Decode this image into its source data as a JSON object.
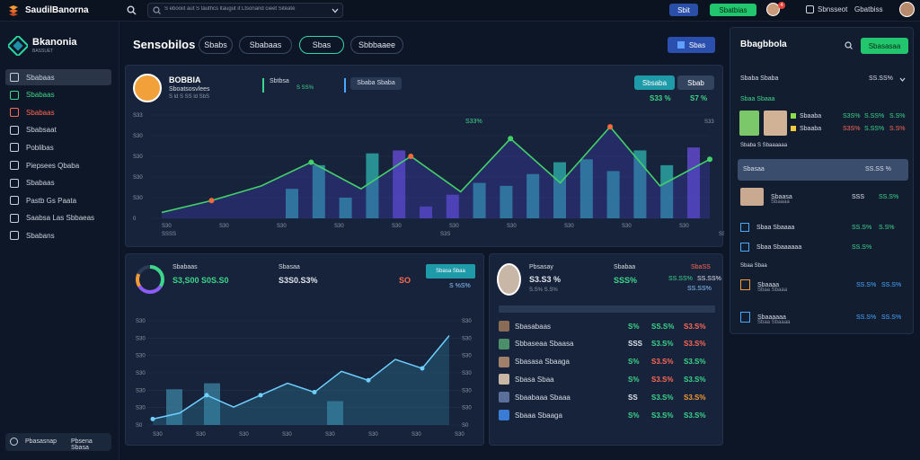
{
  "app": {
    "title": "SaudilBanorna"
  },
  "top": {
    "search_placeholder": "S ebooiit aut S tauthcs ltaugut it Ltsonand cieet Siteate",
    "btn_one": "Sbit",
    "btn_two": "Sbatbias",
    "nav_a": "Sbnsseot",
    "nav_b": "Gbatbiss",
    "notification_count": "4"
  },
  "sidebar": {
    "brand": "Bkanonia",
    "brand_sub": "BASSUET",
    "items": [
      {
        "label": "Sbabaas",
        "color": "#c9d1dc"
      },
      {
        "label": "Sbabaas",
        "color": "#3dd68c"
      },
      {
        "label": "Sbabaas",
        "color": "#ff6a55"
      },
      {
        "label": "Sbabsaat",
        "color": "#c9d1dc"
      },
      {
        "label": "Poblibas",
        "color": "#c9d1dc"
      },
      {
        "label": "Piepsees Qbaba",
        "color": "#c9d1dc"
      },
      {
        "label": "Sbabaas",
        "color": "#c9d1dc"
      },
      {
        "label": "Pastb Gs Paata",
        "color": "#c9d1dc"
      },
      {
        "label": "Saabsa Las Sbbaeas",
        "color": "#c9d1dc"
      },
      {
        "label": "Sbabans",
        "color": "#c9d1dc"
      }
    ],
    "footer_left": "Pbasasnap",
    "footer_right": "Pbsena Sbasa"
  },
  "header": {
    "title": "Sensobilos",
    "tabs": [
      "Sbabs",
      "Sbabaas",
      "Sbas",
      "Sbbbaaee"
    ],
    "action_button": "Sbas"
  },
  "main_chart": {
    "profile_name": "BOBBIA",
    "profile_sub": "Sboatsosvlees",
    "profile_stat": "S ld S SS ld SbS",
    "kpi_a": "Sbtbsa",
    "kpi_a_val": "S SS%",
    "kpi_b": "Sbaba Sbaba",
    "btn_a": "Sbsaba",
    "btn_b": "Sbab",
    "stat_a": "S33 %",
    "stat_b": "S7 %",
    "peak_label": "S33%",
    "right_axis_top": "S33",
    "y_ticks": [
      "S33",
      "S30",
      "S30",
      "S30",
      "S30",
      "0"
    ],
    "x_ticks": [
      "S30",
      "S30",
      "S30",
      "S30",
      "S30",
      "S30",
      "S30",
      "S30",
      "S30",
      "S30"
    ],
    "x_sub_ticks": [
      "SSSS",
      "S3S",
      "SSSS"
    ]
  },
  "left_bottom": {
    "label_a": "Sbabaas",
    "value_a": "S3,S00 S0S.S0",
    "label_b": "Sbasaa",
    "value_b": "S3S0.S3%",
    "value_c": "SO",
    "badge": "Sbasa Sbaa",
    "badge_sub": "S %S%",
    "y_ticks": [
      "S30",
      "S30",
      "S30",
      "S30",
      "S30",
      "S30",
      "S0"
    ],
    "x_ticks": [
      "S30",
      "S30",
      "S30",
      "S30",
      "S30",
      "S30",
      "S30",
      "S30"
    ]
  },
  "mid_bottom": {
    "person_name": "Pbsasay",
    "person_value": "S3.S3 %",
    "person_sub": "S.S%  S.S%",
    "col_a": "Sbabaa",
    "col_a_val": "SSS%",
    "col_b": "SbaSS",
    "col_b_val": "SS.SS%",
    "col_c_val": "SS.SS%",
    "col_c_sub": "SS.SS%",
    "rows": [
      {
        "name": "Sbasabaas",
        "a": "S%",
        "b": "SS.S%",
        "c": "S3.S%",
        "a_color": "#3dd68c",
        "b_color": "#3dd68c",
        "c_color": "#ff6a55"
      },
      {
        "name": "Sbbaseaa Sbaasa",
        "a": "SSS",
        "b": "S3.S%",
        "c": "S3.S%",
        "a_color": "#dfe5ee",
        "b_color": "#3dd68c",
        "c_color": "#ff6a55"
      },
      {
        "name": "Sbasasa Sbaaga",
        "a": "S%",
        "b": "S3.S%",
        "c": "S3.S%",
        "a_color": "#3dd68c",
        "b_color": "#ff6a55",
        "c_color": "#3dd68c"
      },
      {
        "name": "Sbasa Sbaa",
        "a": "S%",
        "b": "S3.S%",
        "c": "S3.S%",
        "a_color": "#3dd68c",
        "b_color": "#ff6a55",
        "c_color": "#3dd68c"
      },
      {
        "name": "Sbaabaaa Sbaaa",
        "a": "SS",
        "b": "S3.S%",
        "c": "S3.S%",
        "a_color": "#dfe5ee",
        "b_color": "#3dd68c",
        "c_color": "#f39a38"
      },
      {
        "name": "Sbaaa Sbaaga",
        "a": "S%",
        "b": "S3.S%",
        "c": "S3.S%",
        "a_color": "#3dd68c",
        "b_color": "#3dd68c",
        "c_color": "#3dd68c"
      }
    ]
  },
  "right_panel": {
    "title": "Bbagbbola",
    "button": "Sbasasaa",
    "section_a": "Sbaba Sbaba",
    "section_a_val": "SS.SS%",
    "section_b": "Sbaa Sbaaa",
    "items_a": [
      {
        "name": "Sbaaba",
        "v1": "S3S%",
        "v2": "S.SS%",
        "v3": "S.S%",
        "c1": "#3dd68c",
        "c2": "#3dd68c",
        "c3": "#3dd68c"
      },
      {
        "name": "Sbaaba",
        "v1": "S3S%",
        "v2": "S.SS%",
        "v3": "S.S%",
        "c1": "#ff6a55",
        "c2": "#3dd68c",
        "c3": "#ff6a55"
      }
    ],
    "section_c": "Sbaba S Sbaaaaaa",
    "highlight": "Sbasaa",
    "highlight_val": "SS.SS %",
    "items_b": [
      {
        "name": "Sbaasa",
        "sub": "Sbaaaa",
        "v1": "SSS",
        "v2": "SS.S%",
        "c2": "#3dd68c"
      },
      {
        "name": "Sbaa Sbaaaa",
        "v1": "SS.S%",
        "v2": "S.S%",
        "c1": "#3dd68c",
        "c2": "#3dd68c"
      },
      {
        "name": "Sbaa Sbaaaaaa",
        "v1": "SS.S%",
        "v2": "",
        "c1": "#3dd68c",
        "c2": "#3dd68c"
      }
    ],
    "section_d": "Sbaa Sbaa",
    "items_c": [
      {
        "name": "Sbaaaa",
        "sub": "Sbaa Sbaaa",
        "v1": "SS.S%",
        "v2": "SS.S%"
      },
      {
        "name": "Sbaaaaaa",
        "sub": "Sbaa Sbaaaa",
        "v1": "SS.S%",
        "v2": "SS.S%"
      }
    ]
  },
  "chart_data": [
    {
      "type": "line",
      "series": [
        {
          "values": [
            2,
            6,
            11,
            19,
            10,
            21,
            9,
            27,
            12,
            31,
            11,
            20
          ]
        }
      ],
      "bars": [
        10,
        18,
        7,
        22,
        23,
        4,
        8,
        12,
        11,
        15,
        19,
        20,
        16,
        23,
        18,
        24
      ],
      "ylim": [
        0,
        35
      ]
    },
    {
      "type": "line",
      "series": [
        {
          "values": [
            2,
            4,
            10,
            6,
            10,
            14,
            11,
            18,
            15,
            22,
            19,
            30
          ]
        }
      ],
      "bars": [
        12,
        14,
        8
      ],
      "ylim": [
        0,
        35
      ]
    }
  ]
}
